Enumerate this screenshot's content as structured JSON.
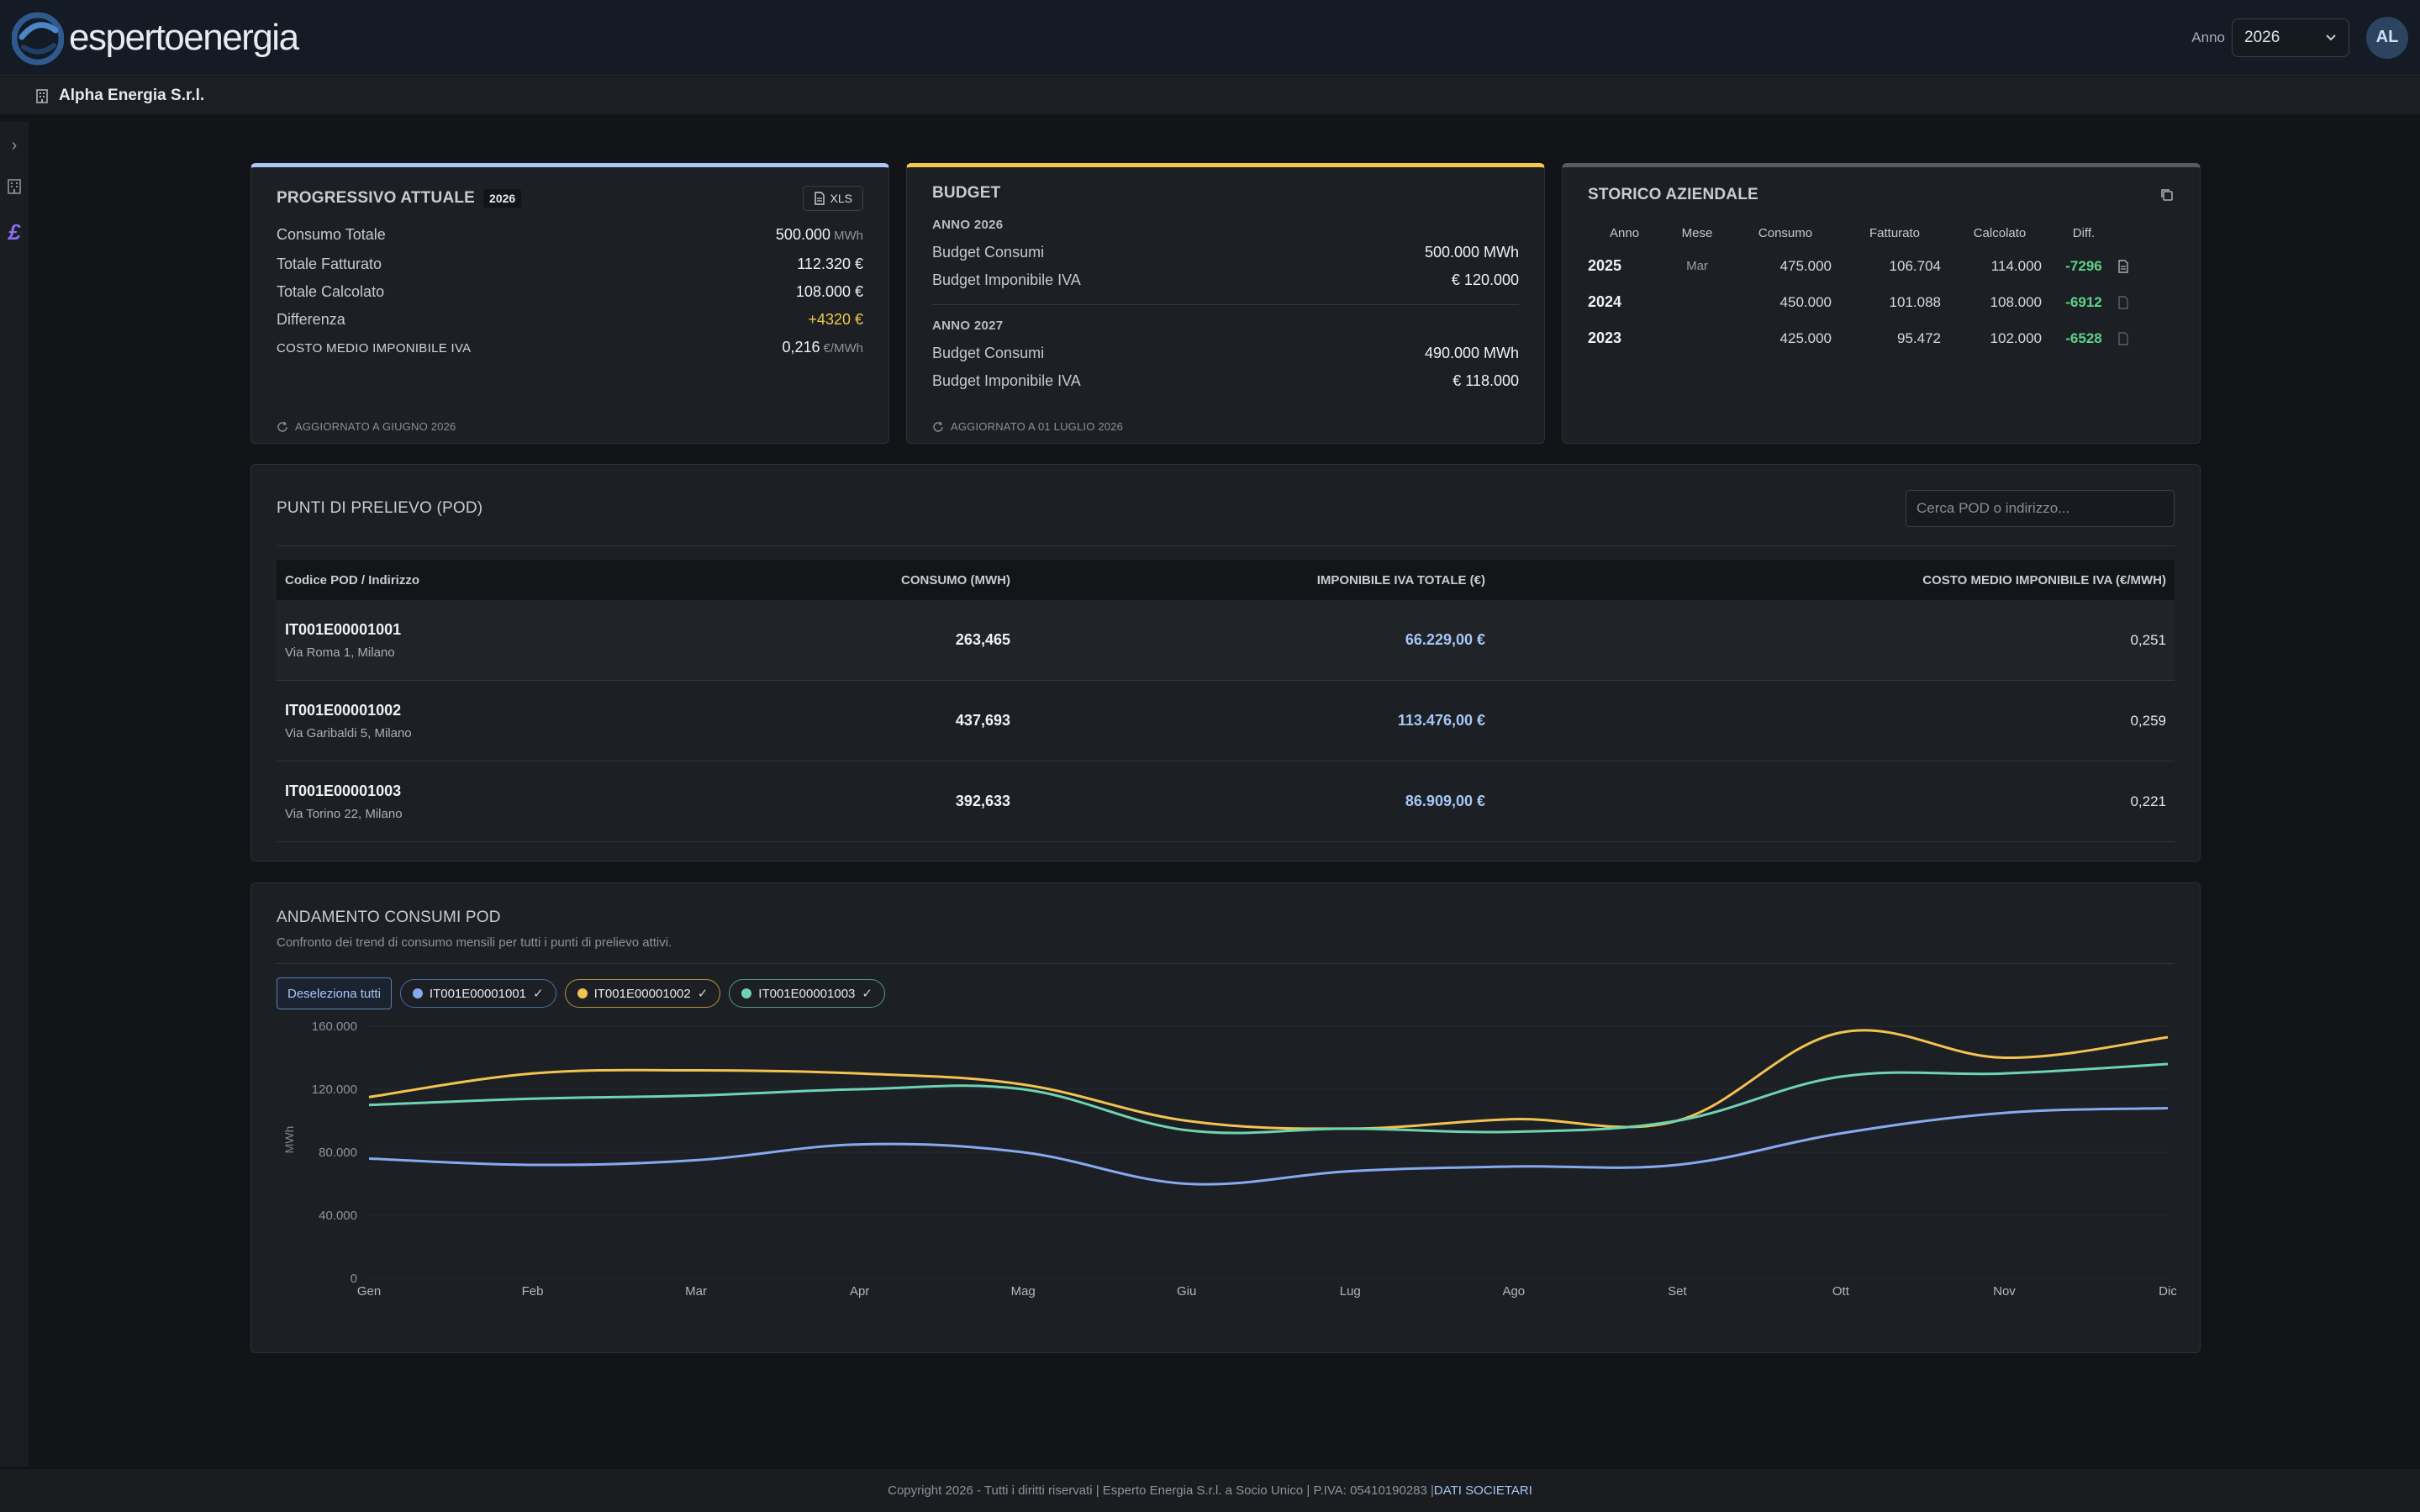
{
  "header": {
    "brand": "espertoenergia",
    "anno_label": "Anno",
    "anno_value": "2026",
    "avatar_initials": "AL"
  },
  "company": {
    "name": "Alpha Energia S.r.l."
  },
  "progressivo": {
    "title": "PROGRESSIVO ATTUALE",
    "year_badge": "2026",
    "xls_label": "XLS",
    "rows": [
      {
        "label": "Consumo Totale",
        "value": "500.000",
        "unit": "MWh"
      },
      {
        "label": "Totale Fatturato",
        "value": "112.320 €",
        "unit": ""
      },
      {
        "label": "Totale Calcolato",
        "value": "108.000 €",
        "unit": ""
      },
      {
        "label": "Differenza",
        "value": "+4320 €",
        "unit": ""
      }
    ],
    "costo_label": "COSTO MEDIO IMPONIBILE IVA",
    "costo_value": "0,216",
    "costo_unit": "€/MWh",
    "updated": "AGGIORNATO A GIUGNO 2026"
  },
  "budget": {
    "title": "BUDGET",
    "y1_label": "ANNO 2026",
    "y1_consumi_label": "Budget Consumi",
    "y1_consumi_value": "500.000 MWh",
    "y1_imp_label": "Budget Imponibile IVA",
    "y1_imp_value": "€ 120.000",
    "y2_label": "ANNO 2027",
    "y2_consumi_label": "Budget Consumi",
    "y2_consumi_value": "490.000 MWh",
    "y2_imp_label": "Budget Imponibile IVA",
    "y2_imp_value": "€ 118.000",
    "updated": "AGGIORNATO A 01 LUGLIO 2026"
  },
  "storico": {
    "title": "STORICO AZIENDALE",
    "headers": [
      "Anno",
      "Mese",
      "Consumo",
      "Fatturato",
      "Calcolato",
      "Diff."
    ],
    "rows": [
      {
        "anno": "2025",
        "mese": "Mar",
        "consumo": "475.000",
        "fatturato": "106.704",
        "calcolato": "114.000",
        "diff": "-7296"
      },
      {
        "anno": "2024",
        "mese": "",
        "consumo": "450.000",
        "fatturato": "101.088",
        "calcolato": "108.000",
        "diff": "-6912"
      },
      {
        "anno": "2023",
        "mese": "",
        "consumo": "425.000",
        "fatturato": "95.472",
        "calcolato": "102.000",
        "diff": "-6528"
      }
    ]
  },
  "pod": {
    "title": "PUNTI DI PRELIEVO (POD)",
    "search_placeholder": "Cerca POD o indirizzo...",
    "headers": [
      "Codice POD / Indirizzo",
      "CONSUMO (MWH)",
      "IMPONIBILE IVA TOTALE (€)",
      "COSTO MEDIO IMPONIBILE IVA (€/MWH)"
    ],
    "rows": [
      {
        "code": "IT001E00001001",
        "address": "Via Roma 1, Milano",
        "consumo": "263,465",
        "imponibile": "66.229,00 €",
        "costo": "0,251"
      },
      {
        "code": "IT001E00001002",
        "address": "Via Garibaldi 5, Milano",
        "consumo": "437,693",
        "imponibile": "113.476,00 €",
        "costo": "0,259"
      },
      {
        "code": "IT001E00001003",
        "address": "Via Torino 22, Milano",
        "consumo": "392,633",
        "imponibile": "86.909,00 €",
        "costo": "0,221"
      }
    ]
  },
  "andamento": {
    "title": "ANDAMENTO CONSUMI POD",
    "subtitle": "Confronto dei trend di consumo mensili per tutti i punti di prelievo attivi.",
    "deselect_label": "Deseleziona tutti"
  },
  "chart_data": {
    "type": "line",
    "ylabel": "MWh",
    "ylim": [
      0,
      160000
    ],
    "yticks": [
      "0",
      "40.000",
      "80.000",
      "120.000",
      "160.000"
    ],
    "ytick_values": [
      0,
      40000,
      80000,
      120000,
      160000
    ],
    "categories": [
      "Gen",
      "Feb",
      "Mar",
      "Apr",
      "Mag",
      "Giu",
      "Lug",
      "Ago",
      "Set",
      "Ott",
      "Nov",
      "Dic"
    ],
    "grid": true,
    "series": [
      {
        "name": "IT001E00001001",
        "color": "#86aaf0",
        "values": [
          76000,
          72000,
          75000,
          85000,
          80000,
          60000,
          68000,
          71000,
          72000,
          92000,
          105000,
          108000
        ]
      },
      {
        "name": "IT001E00001002",
        "color": "#f3c352",
        "values": [
          115000,
          130000,
          132000,
          130000,
          123000,
          100000,
          95000,
          101000,
          100000,
          156000,
          140000,
          153000
        ]
      },
      {
        "name": "IT001E00001003",
        "color": "#6ed4b0",
        "values": [
          110000,
          114000,
          116000,
          120000,
          120000,
          94000,
          95000,
          93000,
          100000,
          128000,
          130000,
          136000
        ]
      }
    ]
  },
  "footer": {
    "text": "Copyright 2026 - Tutti i diritti riservati | Esperto Energia S.r.l. a Socio Unico | P.IVA: 05410190283 | ",
    "link": "DATI SOCIETARI"
  }
}
